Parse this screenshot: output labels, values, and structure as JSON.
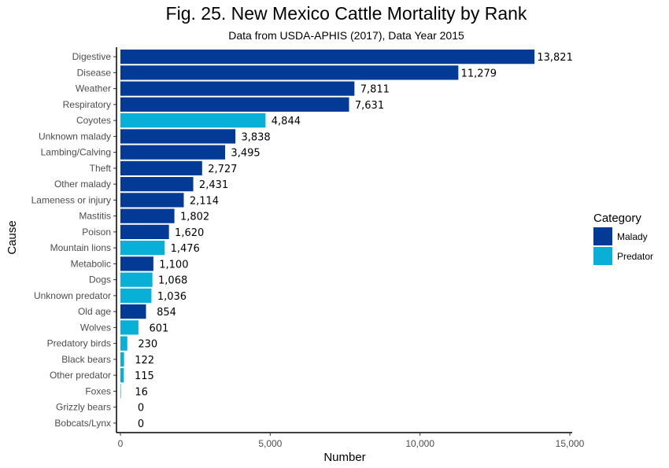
{
  "chart_data": {
    "type": "bar",
    "orientation": "horizontal",
    "title": "Fig. 25. New Mexico Cattle Mortality by Rank",
    "subtitle": "Data from USDA-APHIS (2017), Data Year 2015",
    "xlabel": "Number",
    "ylabel": "Cause",
    "xlim": [
      0,
      15000
    ],
    "xticks": [
      0,
      5000,
      10000,
      15000
    ],
    "xtick_labels": [
      "0",
      "5,000",
      "10,000",
      "15,000"
    ],
    "grid": false,
    "legend": {
      "title": "Category",
      "position": "right",
      "entries": [
        {
          "name": "Malady",
          "color": "#033a95"
        },
        {
          "name": "Predator",
          "color": "#08b0d8"
        }
      ]
    },
    "bars": [
      {
        "label": "Digestive",
        "value": 13821,
        "value_label": "13,821",
        "category": "Malady"
      },
      {
        "label": "Disease",
        "value": 11279,
        "value_label": "11,279",
        "category": "Malady"
      },
      {
        "label": "Weather",
        "value": 7811,
        "value_label": "7,811",
        "category": "Malady"
      },
      {
        "label": "Respiratory",
        "value": 7631,
        "value_label": "7,631",
        "category": "Malady"
      },
      {
        "label": "Coyotes",
        "value": 4844,
        "value_label": "4,844",
        "category": "Predator"
      },
      {
        "label": "Unknown malady",
        "value": 3838,
        "value_label": "3,838",
        "category": "Malady"
      },
      {
        "label": "Lambing/Calving",
        "value": 3495,
        "value_label": "3,495",
        "category": "Malady"
      },
      {
        "label": "Theft",
        "value": 2727,
        "value_label": "2,727",
        "category": "Malady"
      },
      {
        "label": "Other malady",
        "value": 2431,
        "value_label": "2,431",
        "category": "Malady"
      },
      {
        "label": "Lameness or injury",
        "value": 2114,
        "value_label": "2,114",
        "category": "Malady"
      },
      {
        "label": "Mastitis",
        "value": 1802,
        "value_label": "1,802",
        "category": "Malady"
      },
      {
        "label": "Poison",
        "value": 1620,
        "value_label": "1,620",
        "category": "Malady"
      },
      {
        "label": "Mountain lions",
        "value": 1476,
        "value_label": "1,476",
        "category": "Predator"
      },
      {
        "label": "Metabolic",
        "value": 1100,
        "value_label": "1,100",
        "category": "Malady"
      },
      {
        "label": "Dogs",
        "value": 1068,
        "value_label": "1,068",
        "category": "Predator"
      },
      {
        "label": "Unknown predator",
        "value": 1036,
        "value_label": "1,036",
        "category": "Predator"
      },
      {
        "label": "Old age",
        "value": 854,
        "value_label": "854",
        "category": "Malady"
      },
      {
        "label": "Wolves",
        "value": 601,
        "value_label": "601",
        "category": "Predator"
      },
      {
        "label": "Predatory birds",
        "value": 230,
        "value_label": "230",
        "category": "Predator"
      },
      {
        "label": "Black bears",
        "value": 122,
        "value_label": "122",
        "category": "Predator"
      },
      {
        "label": "Other predator",
        "value": 115,
        "value_label": "115",
        "category": "Predator"
      },
      {
        "label": "Foxes",
        "value": 16,
        "value_label": "16",
        "category": "Predator"
      },
      {
        "label": "Grizzly bears",
        "value": 0,
        "value_label": "0",
        "category": "Predator"
      },
      {
        "label": "Bobcats/Lynx",
        "value": 0,
        "value_label": "0",
        "category": "Predator"
      }
    ]
  }
}
